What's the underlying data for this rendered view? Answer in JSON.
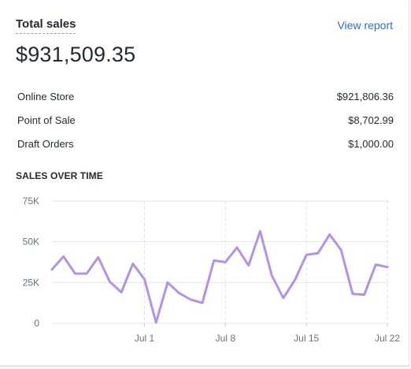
{
  "header": {
    "title": "Total sales",
    "view_report": "View report",
    "total": "$931,509.35"
  },
  "breakdown": [
    {
      "label": "Online Store",
      "value": "$921,806.36"
    },
    {
      "label": "Point of Sale",
      "value": "$8,702.99"
    },
    {
      "label": "Draft Orders",
      "value": "$1,000.00"
    }
  ],
  "colors": {
    "line": "#b491e8",
    "link": "#2c6ecb"
  },
  "chart_data": {
    "type": "line",
    "title": "SALES OVER TIME",
    "y_ticks": [
      "75K",
      "50K",
      "25K",
      "0"
    ],
    "ylim": [
      0,
      75000
    ],
    "x_ticks": [
      {
        "label": "Jul 1",
        "index": 8
      },
      {
        "label": "Jul 8",
        "index": 15
      },
      {
        "label": "Jul 15",
        "index": 22
      },
      {
        "label": "Jul 22",
        "index": 29
      }
    ],
    "series": [
      {
        "values": [
          33000,
          41000,
          30500,
          30500,
          40500,
          25500,
          19000,
          36500,
          27000,
          500,
          25000,
          18500,
          14500,
          12500,
          38500,
          37500,
          46500,
          35500,
          56500,
          29500,
          15500,
          26500,
          42000,
          43000,
          54500,
          45000,
          18000,
          17500,
          36000,
          34500
        ]
      }
    ]
  }
}
